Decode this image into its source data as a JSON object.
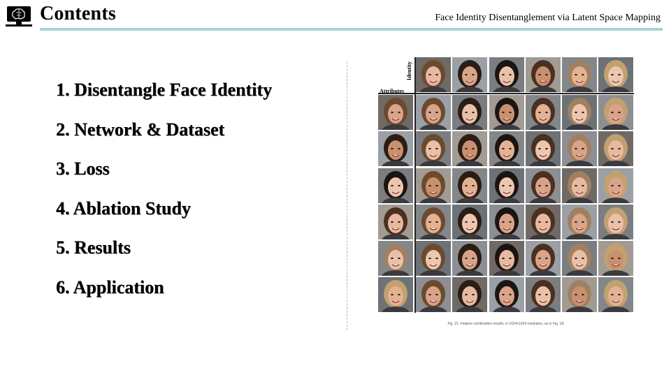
{
  "header": {
    "title": "Contents",
    "subtitle": "Face Identity Disentanglement via Latent Space Mapping",
    "logo_icon": "brain-computer-icon"
  },
  "toc": {
    "items": [
      "1.  Disentangle Face Identity",
      "2. Network & Dataset",
      "3. Loss",
      "4. Ablation Study",
      "5. Results",
      "6. Application"
    ]
  },
  "figure": {
    "identity_label": "Identity",
    "attributes_label": "Attributes",
    "caption": "Fig. 21.  Feature combination results, in 1024x1024 resolution, as in Fig. 18.",
    "rows": 7,
    "cols": 7
  },
  "colors": {
    "accent_rule": "#a6d3da"
  }
}
